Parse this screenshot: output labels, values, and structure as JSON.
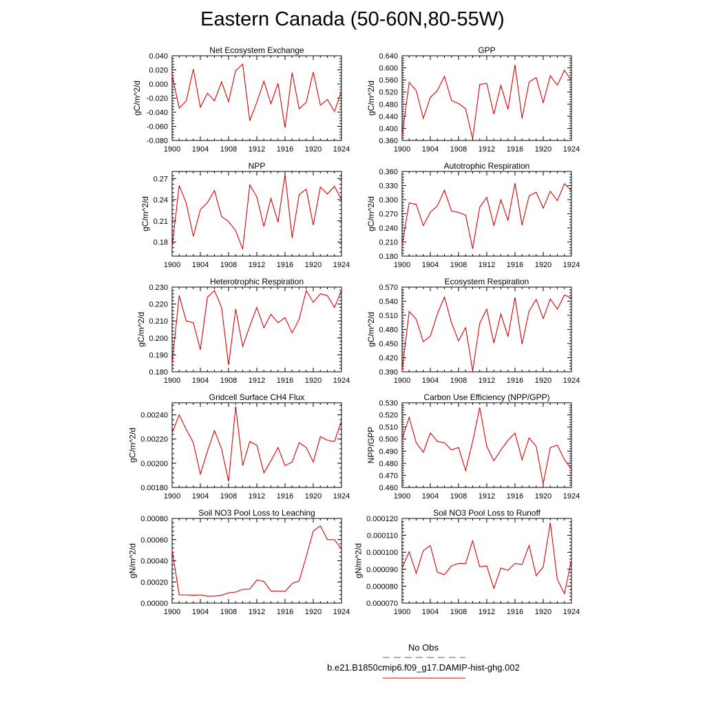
{
  "page": {
    "title": "Eastern Canada (50-60N,80-55W)"
  },
  "legend": {
    "obs_label": "No Obs",
    "obs_color": "#5555cc",
    "model_label": "b.e21.B1850cmip6.f09_g17.DAMIP-hist-ghg.002",
    "model_color": "#dd0000"
  },
  "chart_data": [
    {
      "type": "line",
      "title": "Net Ecosystem Exchange",
      "xlabel": "",
      "ylabel": "gC/m^2/d",
      "xlim": [
        1900,
        1924
      ],
      "ylim": [
        -0.08,
        0.04
      ],
      "xticks": [
        1900,
        1904,
        1908,
        1912,
        1916,
        1920,
        1924
      ],
      "xtick_labels": [
        "1900",
        "1904",
        "1908",
        "1912",
        "1916",
        "1920",
        "1924"
      ],
      "yticks": [
        -0.08,
        -0.06,
        -0.04,
        -0.02,
        0.0,
        0.02,
        0.04
      ],
      "ytick_labels": [
        "-0.080",
        "-0.060",
        "-0.040",
        "-0.020",
        "0.000",
        "0.020",
        "0.040"
      ],
      "grid": false,
      "series": [
        {
          "color": "#dd0000",
          "x": [
            1900,
            1901,
            1902,
            1903,
            1904,
            1905,
            1906,
            1907,
            1908,
            1909,
            1910,
            1911,
            1912,
            1913,
            1914,
            1915,
            1916,
            1917,
            1918,
            1919,
            1920,
            1921,
            1922,
            1923,
            1924
          ],
          "y": [
            0.012,
            -0.034,
            -0.024,
            0.021,
            -0.033,
            -0.013,
            -0.024,
            0.003,
            -0.025,
            0.019,
            0.028,
            -0.052,
            -0.026,
            0.004,
            -0.028,
            0.001,
            -0.062,
            0.016,
            -0.035,
            -0.026,
            0.017,
            -0.03,
            -0.022,
            -0.039,
            -0.01
          ]
        }
      ]
    },
    {
      "type": "line",
      "title": "GPP",
      "xlabel": "",
      "ylabel": "gC/m^2/d",
      "xlim": [
        1900,
        1924
      ],
      "ylim": [
        0.36,
        0.64
      ],
      "xticks": [
        1900,
        1904,
        1908,
        1912,
        1916,
        1920,
        1924
      ],
      "xtick_labels": [
        "1900",
        "1904",
        "1908",
        "1912",
        "1916",
        "1920",
        "1924"
      ],
      "yticks": [
        0.36,
        0.4,
        0.44,
        0.48,
        0.52,
        0.56,
        0.6,
        0.64
      ],
      "ytick_labels": [
        "0.360",
        "0.400",
        "0.440",
        "0.480",
        "0.520",
        "0.560",
        "0.600",
        "0.640"
      ],
      "grid": false,
      "series": [
        {
          "color": "#dd0000",
          "x": [
            1900,
            1901,
            1902,
            1903,
            1904,
            1905,
            1906,
            1907,
            1908,
            1909,
            1910,
            1911,
            1912,
            1913,
            1914,
            1915,
            1916,
            1917,
            1918,
            1919,
            1920,
            1921,
            1922,
            1923,
            1924
          ],
          "y": [
            0.375,
            0.552,
            0.525,
            0.433,
            0.502,
            0.525,
            0.572,
            0.492,
            0.482,
            0.465,
            0.365,
            0.545,
            0.549,
            0.447,
            0.542,
            0.463,
            0.61,
            0.433,
            0.553,
            0.568,
            0.485,
            0.574,
            0.543,
            0.592,
            0.558
          ]
        }
      ]
    },
    {
      "type": "line",
      "title": "NPP",
      "xlabel": "",
      "ylabel": "gC/m^2/d",
      "xlim": [
        1900,
        1924
      ],
      "ylim": [
        0.16,
        0.28
      ],
      "xticks": [
        1900,
        1904,
        1908,
        1912,
        1916,
        1920,
        1924
      ],
      "xtick_labels": [
        "1900",
        "1904",
        "1908",
        "1912",
        "1916",
        "1920",
        "1924"
      ],
      "yticks": [
        0.18,
        0.21,
        0.24,
        0.27
      ],
      "ytick_labels": [
        "0.18",
        "0.21",
        "0.24",
        "0.27"
      ],
      "grid": false,
      "series": [
        {
          "color": "#dd0000",
          "x": [
            1900,
            1901,
            1902,
            1903,
            1904,
            1905,
            1906,
            1907,
            1908,
            1909,
            1910,
            1911,
            1912,
            1913,
            1914,
            1915,
            1916,
            1917,
            1918,
            1919,
            1920,
            1921,
            1922,
            1923,
            1924
          ],
          "y": [
            0.173,
            0.26,
            0.235,
            0.188,
            0.226,
            0.236,
            0.253,
            0.216,
            0.209,
            0.196,
            0.17,
            0.261,
            0.244,
            0.202,
            0.242,
            0.208,
            0.276,
            0.186,
            0.247,
            0.255,
            0.204,
            0.258,
            0.248,
            0.259,
            0.24
          ]
        }
      ]
    },
    {
      "type": "line",
      "title": "Autotrophic Respiration",
      "xlabel": "",
      "ylabel": "gC/m^2/d",
      "xlim": [
        1900,
        1924
      ],
      "ylim": [
        0.18,
        0.36
      ],
      "xticks": [
        1900,
        1904,
        1908,
        1912,
        1916,
        1920,
        1924
      ],
      "xtick_labels": [
        "1900",
        "1904",
        "1908",
        "1912",
        "1916",
        "1920",
        "1924"
      ],
      "yticks": [
        0.18,
        0.21,
        0.24,
        0.27,
        0.3,
        0.33,
        0.36
      ],
      "ytick_labels": [
        "0.180",
        "0.210",
        "0.240",
        "0.270",
        "0.300",
        "0.330",
        "0.360"
      ],
      "grid": false,
      "series": [
        {
          "color": "#dd0000",
          "x": [
            1900,
            1901,
            1902,
            1903,
            1904,
            1905,
            1906,
            1907,
            1908,
            1909,
            1910,
            1911,
            1912,
            1913,
            1914,
            1915,
            1916,
            1917,
            1918,
            1919,
            1920,
            1921,
            1922,
            1923,
            1924
          ],
          "y": [
            0.203,
            0.293,
            0.29,
            0.245,
            0.273,
            0.287,
            0.32,
            0.276,
            0.273,
            0.267,
            0.196,
            0.284,
            0.305,
            0.245,
            0.3,
            0.256,
            0.335,
            0.246,
            0.308,
            0.316,
            0.282,
            0.318,
            0.298,
            0.334,
            0.319
          ]
        }
      ]
    },
    {
      "type": "line",
      "title": "Heterotrophic Respiration",
      "xlabel": "",
      "ylabel": "gC/m^2/d",
      "xlim": [
        1900,
        1924
      ],
      "ylim": [
        0.18,
        0.23
      ],
      "xticks": [
        1900,
        1904,
        1908,
        1912,
        1916,
        1920,
        1924
      ],
      "xtick_labels": [
        "1900",
        "1904",
        "1908",
        "1912",
        "1916",
        "1920",
        "1924"
      ],
      "yticks": [
        0.18,
        0.19,
        0.2,
        0.21,
        0.22,
        0.23
      ],
      "ytick_labels": [
        "0.180",
        "0.190",
        "0.200",
        "0.210",
        "0.220",
        "0.230"
      ],
      "grid": false,
      "series": [
        {
          "color": "#dd0000",
          "x": [
            1900,
            1901,
            1902,
            1903,
            1904,
            1905,
            1906,
            1907,
            1908,
            1909,
            1910,
            1911,
            1912,
            1913,
            1914,
            1915,
            1916,
            1917,
            1918,
            1919,
            1920,
            1921,
            1922,
            1923,
            1924
          ],
          "y": [
            0.185,
            0.225,
            0.21,
            0.209,
            0.193,
            0.224,
            0.228,
            0.218,
            0.184,
            0.217,
            0.195,
            0.207,
            0.218,
            0.206,
            0.214,
            0.209,
            0.212,
            0.203,
            0.211,
            0.228,
            0.221,
            0.226,
            0.225,
            0.218,
            0.228
          ]
        }
      ]
    },
    {
      "type": "line",
      "title": "Ecosystem Respiration",
      "xlabel": "",
      "ylabel": "gC/m^2/d",
      "xlim": [
        1900,
        1924
      ],
      "ylim": [
        0.39,
        0.57
      ],
      "xticks": [
        1900,
        1904,
        1908,
        1912,
        1916,
        1920,
        1924
      ],
      "xtick_labels": [
        "1900",
        "1904",
        "1908",
        "1912",
        "1916",
        "1920",
        "1924"
      ],
      "yticks": [
        0.39,
        0.42,
        0.45,
        0.48,
        0.51,
        0.54,
        0.57
      ],
      "ytick_labels": [
        "0.390",
        "0.420",
        "0.450",
        "0.480",
        "0.510",
        "0.540",
        "0.570"
      ],
      "grid": false,
      "series": [
        {
          "color": "#dd0000",
          "x": [
            1900,
            1901,
            1902,
            1903,
            1904,
            1905,
            1906,
            1907,
            1908,
            1909,
            1910,
            1911,
            1912,
            1913,
            1914,
            1915,
            1916,
            1917,
            1918,
            1919,
            1920,
            1921,
            1922,
            1923,
            1924
          ],
          "y": [
            0.392,
            0.518,
            0.502,
            0.454,
            0.466,
            0.513,
            0.549,
            0.494,
            0.456,
            0.484,
            0.392,
            0.493,
            0.523,
            0.451,
            0.513,
            0.465,
            0.548,
            0.449,
            0.519,
            0.544,
            0.503,
            0.545,
            0.523,
            0.553,
            0.547
          ]
        }
      ]
    },
    {
      "type": "line",
      "title": "Gridcell Surface CH4 Flux",
      "xlabel": "",
      "ylabel": "gC/m^2/d",
      "xlim": [
        1900,
        1924
      ],
      "ylim": [
        0.0018,
        0.0025
      ],
      "xticks": [
        1900,
        1904,
        1908,
        1912,
        1916,
        1920,
        1924
      ],
      "xtick_labels": [
        "1900",
        "1904",
        "1908",
        "1912",
        "1916",
        "1920",
        "1924"
      ],
      "yticks": [
        0.0018,
        0.002,
        0.0022,
        0.0024
      ],
      "ytick_labels": [
        "0.00180",
        "0.00200",
        "0.00220",
        "0.00240"
      ],
      "grid": false,
      "series": [
        {
          "color": "#dd0000",
          "x": [
            1900,
            1901,
            1902,
            1903,
            1904,
            1905,
            1906,
            1907,
            1908,
            1909,
            1910,
            1911,
            1912,
            1913,
            1914,
            1915,
            1916,
            1917,
            1918,
            1919,
            1920,
            1921,
            1922,
            1923,
            1924
          ],
          "y": [
            0.00225,
            0.0024,
            0.00228,
            0.00217,
            0.00191,
            0.0021,
            0.00227,
            0.00212,
            0.00185,
            0.00247,
            0.00198,
            0.00218,
            0.00215,
            0.00192,
            0.00202,
            0.00213,
            0.00198,
            0.00201,
            0.00217,
            0.00213,
            0.00201,
            0.00222,
            0.00219,
            0.00218,
            0.00235
          ]
        }
      ]
    },
    {
      "type": "line",
      "title": "Carbon Use Efficiency (NPP/GPP)",
      "xlabel": "",
      "ylabel": "NPP/GPP",
      "xlim": [
        1900,
        1924
      ],
      "ylim": [
        0.46,
        0.53
      ],
      "xticks": [
        1900,
        1904,
        1908,
        1912,
        1916,
        1920,
        1924
      ],
      "xtick_labels": [
        "1900",
        "1904",
        "1908",
        "1912",
        "1916",
        "1920",
        "1924"
      ],
      "yticks": [
        0.46,
        0.47,
        0.48,
        0.49,
        0.5,
        0.51,
        0.52,
        0.53
      ],
      "ytick_labels": [
        "0.460",
        "0.470",
        "0.480",
        "0.490",
        "0.500",
        "0.510",
        "0.520",
        "0.530"
      ],
      "grid": false,
      "series": [
        {
          "color": "#dd0000",
          "x": [
            1900,
            1901,
            1902,
            1903,
            1904,
            1905,
            1906,
            1907,
            1908,
            1909,
            1910,
            1911,
            1912,
            1913,
            1914,
            1915,
            1916,
            1917,
            1918,
            1919,
            1920,
            1921,
            1922,
            1923,
            1924
          ],
          "y": [
            0.5,
            0.518,
            0.497,
            0.489,
            0.505,
            0.498,
            0.497,
            0.491,
            0.493,
            0.474,
            0.498,
            0.526,
            0.494,
            0.482,
            0.491,
            0.499,
            0.505,
            0.483,
            0.501,
            0.494,
            0.463,
            0.493,
            0.495,
            0.483,
            0.475
          ]
        }
      ]
    },
    {
      "type": "line",
      "title": "Soil NO3 Pool Loss to Leaching",
      "xlabel": "",
      "ylabel": "gN/m^2/d",
      "xlim": [
        1900,
        1924
      ],
      "ylim": [
        0.0,
        0.0008
      ],
      "xticks": [
        1900,
        1904,
        1908,
        1912,
        1916,
        1920,
        1924
      ],
      "xtick_labels": [
        "1900",
        "1904",
        "1908",
        "1912",
        "1916",
        "1920",
        "1924"
      ],
      "yticks": [
        0.0,
        0.0002,
        0.0004,
        0.0006,
        0.0008
      ],
      "ytick_labels": [
        "0.00000",
        "0.00020",
        "0.00040",
        "0.00060",
        "0.00080"
      ],
      "grid": false,
      "series": [
        {
          "color": "#dd0000",
          "x": [
            1900,
            1901,
            1902,
            1903,
            1904,
            1905,
            1906,
            1907,
            1908,
            1909,
            1910,
            1911,
            1912,
            1913,
            1914,
            1915,
            1916,
            1917,
            1918,
            1919,
            1920,
            1921,
            1922,
            1923,
            1924
          ],
          "y": [
            0.0005,
            7.8e-05,
            7.8e-05,
            7.4e-05,
            7.8e-05,
            6.6e-05,
            6.6e-05,
            7.4e-05,
            9.6e-05,
            0.000104,
            0.00013,
            0.000133,
            0.000218,
            0.000205,
            0.000114,
            0.000114,
            0.000111,
            0.000185,
            0.00021,
            0.00044,
            0.00068,
            0.00073,
            0.0006,
            0.0006,
            0.00051
          ]
        }
      ]
    },
    {
      "type": "line",
      "title": "Soil NO3 Pool Loss to Runoff",
      "xlabel": "",
      "ylabel": "gN/m^2/d",
      "xlim": [
        1900,
        1924
      ],
      "ylim": [
        7e-05,
        0.00012
      ],
      "xticks": [
        1900,
        1904,
        1908,
        1912,
        1916,
        1920,
        1924
      ],
      "xtick_labels": [
        "1900",
        "1904",
        "1908",
        "1912",
        "1916",
        "1920",
        "1924"
      ],
      "yticks": [
        7e-05,
        8e-05,
        9e-05,
        0.0001,
        0.00011,
        0.00012
      ],
      "ytick_labels": [
        "0.000070",
        "0.000080",
        "0.000090",
        "0.000100",
        "0.000110",
        "0.000120"
      ],
      "grid": false,
      "series": [
        {
          "color": "#dd0000",
          "x": [
            1900,
            1901,
            1902,
            1903,
            1904,
            1905,
            1906,
            1907,
            1908,
            1909,
            1910,
            1911,
            1912,
            1913,
            1914,
            1915,
            1916,
            1917,
            1918,
            1919,
            1920,
            1921,
            1922,
            1923,
            1924
          ],
          "y": [
            9.08e-05,
            0.0001003,
            8.76e-05,
            0.000101,
            0.000104,
            8.82e-05,
            8.68e-05,
            9.2e-05,
            9.34e-05,
            9.34e-05,
            0.0001068,
            9.14e-05,
            9.2e-05,
            7.87e-05,
            9.07e-05,
            8.94e-05,
            9.34e-05,
            9.28e-05,
            0.000104,
            8.62e-05,
            9.14e-05,
            0.0001175,
            8.4e-05,
            7.56e-05,
            9.55e-05
          ]
        }
      ]
    }
  ]
}
